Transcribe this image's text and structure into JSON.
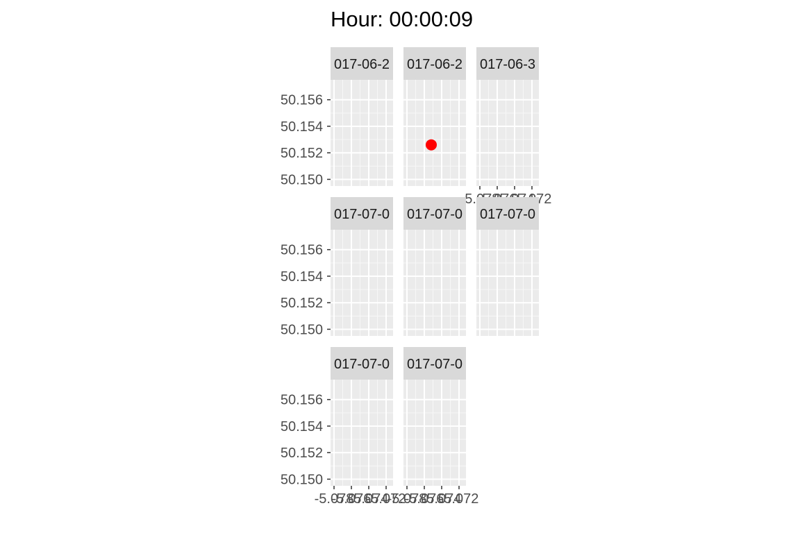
{
  "title": "Hour: 00:00:09",
  "chart_data": {
    "type": "scatter",
    "grid": true,
    "ylim": [
      50.1495,
      50.1575
    ],
    "yticks": [
      50.15,
      50.152,
      50.154,
      50.156
    ],
    "ytick_labels": [
      "50.150",
      "50.152",
      "50.154",
      "50.156"
    ],
    "xlim": [
      -5.0784,
      -5.0712
    ],
    "xticks": [
      -5.078,
      -5.076,
      -5.074,
      -5.072
    ],
    "xtick_labels": [
      "-5.078",
      "-5.076",
      "-5.074",
      "-5.072"
    ],
    "facets": [
      {
        "label": "017-06-2",
        "x_axis": false,
        "points": []
      },
      {
        "label": "017-06-2",
        "x_axis": false,
        "points": [
          {
            "x": -5.0752,
            "y": 50.1526
          }
        ]
      },
      {
        "label": "017-06-3",
        "x_axis": true,
        "points": []
      },
      {
        "label": "017-07-0",
        "x_axis": false,
        "points": []
      },
      {
        "label": "017-07-0",
        "x_axis": false,
        "points": []
      },
      {
        "label": "017-07-0",
        "x_axis": false,
        "points": []
      },
      {
        "label": "017-07-0",
        "x_axis": true,
        "points": []
      },
      {
        "label": "017-07-0",
        "x_axis": true,
        "points": []
      }
    ],
    "point_color": "#ff0000",
    "panel_background": "#ebebeb",
    "strip_background": "#d9d9d9"
  }
}
